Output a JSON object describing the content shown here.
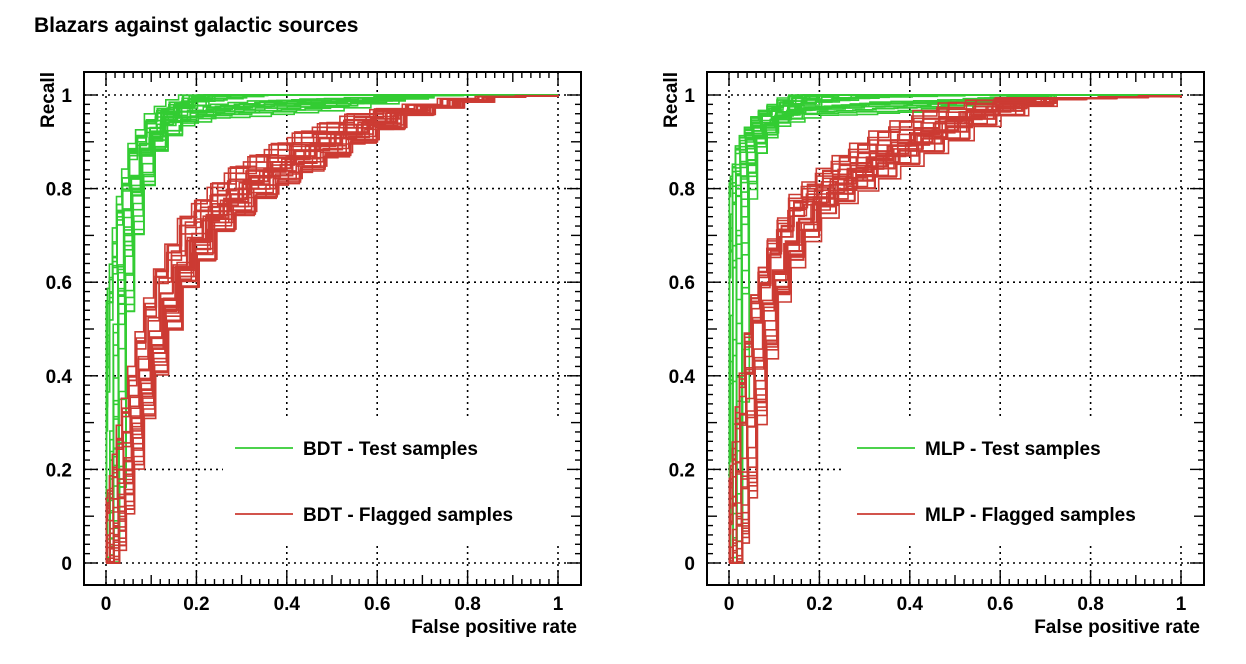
{
  "figure_title": "Blazars against galactic sources",
  "colors": {
    "green": "#33cc33",
    "red": "#cc3b33",
    "grid": "#000000"
  },
  "chart_data": [
    {
      "type": "line",
      "title": "",
      "xlabel": "False positive rate",
      "ylabel": "Recall",
      "xlim": [
        0,
        1
      ],
      "ylim": [
        0,
        1
      ],
      "xticks": [
        "0",
        "0.2",
        "0.4",
        "0.6",
        "0.8",
        "1"
      ],
      "yticks": [
        "0",
        "0.2",
        "0.4",
        "0.6",
        "0.8",
        "1"
      ],
      "grid": true,
      "legend": [
        "BDT - Test samples",
        "BDT - Flagged samples"
      ],
      "legend_position": "bottom-right",
      "series": [
        {
          "name": "BDT - Test samples",
          "color": "#33cc33",
          "approx_shape": [
            [
              0.0,
              0.0
            ],
            [
              0.01,
              0.25
            ],
            [
              0.02,
              0.55
            ],
            [
              0.04,
              0.75
            ],
            [
              0.07,
              0.88
            ],
            [
              0.12,
              0.95
            ],
            [
              0.2,
              0.98
            ],
            [
              0.35,
              0.995
            ],
            [
              0.74,
              1.0
            ],
            [
              1.0,
              1.0
            ]
          ],
          "n_curves": 30
        },
        {
          "name": "BDT - Flagged samples",
          "color": "#cc3b33",
          "approx_shape": [
            [
              0.0,
              0.0
            ],
            [
              0.02,
              0.12
            ],
            [
              0.05,
              0.3
            ],
            [
              0.09,
              0.47
            ],
            [
              0.13,
              0.6
            ],
            [
              0.2,
              0.73
            ],
            [
              0.3,
              0.82
            ],
            [
              0.45,
              0.9
            ],
            [
              0.6,
              0.96
            ],
            [
              0.8,
              0.995
            ],
            [
              1.0,
              1.0
            ]
          ],
          "n_curves": 30
        }
      ]
    },
    {
      "type": "line",
      "title": "",
      "xlabel": "False positive rate",
      "ylabel": "Recall",
      "xlim": [
        0,
        1
      ],
      "ylim": [
        0,
        1
      ],
      "xticks": [
        "0",
        "0.2",
        "0.4",
        "0.6",
        "0.8",
        "1"
      ],
      "yticks": [
        "0",
        "0.2",
        "0.4",
        "0.6",
        "0.8",
        "1"
      ],
      "grid": true,
      "legend": [
        "MLP - Test samples",
        "MLP - Flagged samples"
      ],
      "legend_position": "bottom-right",
      "series": [
        {
          "name": "MLP - Test samples",
          "color": "#33cc33",
          "approx_shape": [
            [
              0.0,
              0.0
            ],
            [
              0.005,
              0.3
            ],
            [
              0.01,
              0.6
            ],
            [
              0.02,
              0.8
            ],
            [
              0.04,
              0.9
            ],
            [
              0.08,
              0.95
            ],
            [
              0.15,
              0.98
            ],
            [
              0.3,
              0.995
            ],
            [
              0.57,
              1.0
            ],
            [
              1.0,
              1.0
            ]
          ],
          "n_curves": 30
        },
        {
          "name": "MLP - Flagged samples",
          "color": "#cc3b33",
          "approx_shape": [
            [
              0.0,
              0.0
            ],
            [
              0.02,
              0.15
            ],
            [
              0.04,
              0.35
            ],
            [
              0.07,
              0.55
            ],
            [
              0.11,
              0.67
            ],
            [
              0.17,
              0.77
            ],
            [
              0.25,
              0.83
            ],
            [
              0.35,
              0.89
            ],
            [
              0.5,
              0.96
            ],
            [
              0.65,
              0.99
            ],
            [
              1.0,
              1.0
            ]
          ],
          "n_curves": 30
        }
      ]
    }
  ]
}
